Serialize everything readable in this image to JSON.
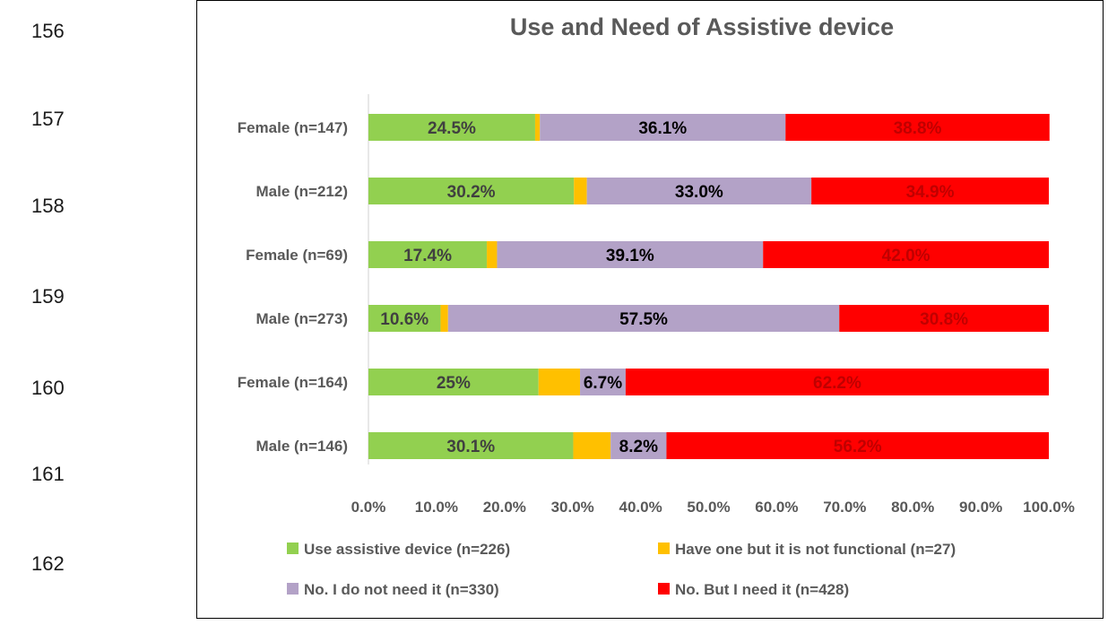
{
  "line_numbers": [
    "156",
    "157",
    "158",
    "159",
    "160",
    "161",
    "162"
  ],
  "chart_data": {
    "type": "bar",
    "orientation": "horizontal",
    "stacked": true,
    "percent": true,
    "title": "Use and Need of Assistive device",
    "categories": [
      "Female (n=147)",
      "Male (n=212)",
      "Female (n=69)",
      "Male (n=273)",
      "Female (n=164)",
      "Male (n=146)"
    ],
    "series": [
      {
        "name": "Use assistive device (n=226)",
        "color": "#92D050",
        "values": [
          24.5,
          30.2,
          17.4,
          10.6,
          25.0,
          30.1
        ],
        "labels": [
          "24.5%",
          "30.2%",
          "17.4%",
          "10.6%",
          "25%",
          "30.1%"
        ]
      },
      {
        "name": "Have one but it is not functional (n=27)",
        "color": "#FFC000",
        "values": [
          0.7,
          1.9,
          1.5,
          1.1,
          6.1,
          5.5
        ],
        "labels": [
          "",
          "",
          "",
          "",
          "",
          ""
        ]
      },
      {
        "name": "No. I do not need it (n=330)",
        "color": "#B3A2C7",
        "values": [
          36.1,
          33.0,
          39.1,
          57.5,
          6.7,
          8.2
        ],
        "labels": [
          "36.1%",
          "33.0%",
          "39.1%",
          "57.5%",
          "6.7%",
          "8.2%"
        ]
      },
      {
        "name": "No. But I need it (n=428)",
        "color": "#FF0000",
        "values": [
          38.8,
          34.9,
          42.0,
          30.8,
          62.2,
          56.2
        ],
        "labels": [
          "38.8%",
          "34.9%",
          "42.0%",
          "30.8%",
          "62.2%",
          "56.2%"
        ]
      }
    ],
    "label_colors": [
      "#404040",
      "#404040",
      "#000000",
      "#C00000"
    ],
    "xlim": [
      0,
      100
    ],
    "xticks": [
      "0.0%",
      "10.0%",
      "20.0%",
      "30.0%",
      "40.0%",
      "50.0%",
      "60.0%",
      "70.0%",
      "80.0%",
      "90.0%",
      "100.0%"
    ],
    "grid": false,
    "legend_position": "bottom"
  }
}
